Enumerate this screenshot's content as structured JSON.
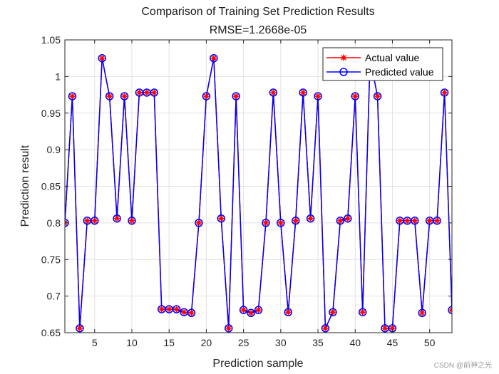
{
  "chart_data": {
    "type": "line",
    "title": "Comparison of Training Set Prediction Results",
    "subtitle": "RMSE=1.2668e-05",
    "xlabel": "Prediction sample",
    "ylabel": "Prediction result",
    "xlim": [
      1,
      53
    ],
    "ylim": [
      0.65,
      1.05
    ],
    "xticks": [
      5,
      10,
      15,
      20,
      25,
      30,
      35,
      40,
      45,
      50
    ],
    "yticks": [
      0.65,
      0.7,
      0.75,
      0.8,
      0.85,
      0.9,
      0.95,
      1,
      1.05
    ],
    "ytick_labels": [
      "0.65",
      "0.7",
      "0.75",
      "0.8",
      "0.85",
      "0.9",
      "0.95",
      "1",
      "1.05"
    ],
    "grid": true,
    "legend_position": "top-right",
    "series": [
      {
        "name": "Actual value",
        "color": "#ff0000",
        "marker": "asterisk",
        "values": [
          0.8,
          0.973,
          0.656,
          0.803,
          0.803,
          1.025,
          0.973,
          0.806,
          0.973,
          0.803,
          0.978,
          0.978,
          0.978,
          0.682,
          0.682,
          0.682,
          0.678,
          0.677,
          0.8,
          0.973,
          1.025,
          0.806,
          0.656,
          0.973,
          0.681,
          0.677,
          0.681,
          0.8,
          0.978,
          0.8,
          0.678,
          0.803,
          0.978,
          0.806,
          0.973,
          0.656,
          0.678,
          0.803,
          0.806,
          0.973,
          0.678,
          1.025,
          0.973,
          0.656,
          0.656,
          0.803,
          0.803,
          0.803,
          0.677,
          0.803,
          0.803,
          0.978,
          0.681
        ]
      },
      {
        "name": "Predicted value",
        "color": "#0000ff",
        "marker": "circle",
        "values": [
          0.8,
          0.973,
          0.656,
          0.803,
          0.803,
          1.025,
          0.973,
          0.806,
          0.973,
          0.803,
          0.978,
          0.978,
          0.978,
          0.682,
          0.682,
          0.682,
          0.678,
          0.677,
          0.8,
          0.973,
          1.025,
          0.806,
          0.656,
          0.973,
          0.681,
          0.677,
          0.681,
          0.8,
          0.978,
          0.8,
          0.678,
          0.803,
          0.978,
          0.806,
          0.973,
          0.656,
          0.678,
          0.803,
          0.806,
          0.973,
          0.678,
          1.025,
          0.973,
          0.656,
          0.656,
          0.803,
          0.803,
          0.803,
          0.677,
          0.803,
          0.803,
          0.978,
          0.681
        ]
      }
    ]
  },
  "watermark": "CSDN @前神之光"
}
